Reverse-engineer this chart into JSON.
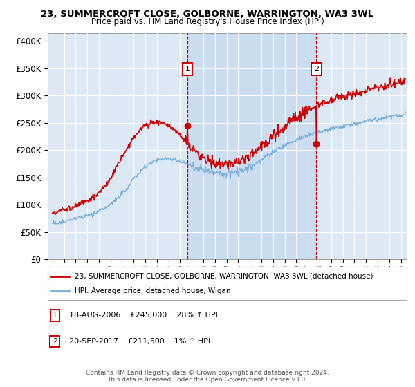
{
  "title1": "23, SUMMERCROFT CLOSE, GOLBORNE, WARRINGTON, WA3 3WL",
  "title2": "Price paid vs. HM Land Registry's House Price Index (HPI)",
  "bg_color": "#dce9f5",
  "ylabel_ticks": [
    "£0",
    "£50K",
    "£100K",
    "£150K",
    "£200K",
    "£250K",
    "£300K",
    "£350K",
    "£400K"
  ],
  "ytick_values": [
    0,
    50000,
    100000,
    150000,
    200000,
    250000,
    300000,
    350000,
    400000
  ],
  "ylim": [
    0,
    415000
  ],
  "xlim_start": 1994.6,
  "xlim_end": 2025.5,
  "legend_line1": "23, SUMMERCROFT CLOSE, GOLBORNE, WARRINGTON, WA3 3WL (detached house)",
  "legend_line2": "HPI: Average price, detached house, Wigan",
  "sale1_date": 2006.625,
  "sale1_price": 245000,
  "sale1_label": "1",
  "sale1_note": "18-AUG-2006    £245,000    28% ↑ HPI",
  "sale2_date": 2017.72,
  "sale2_price": 211500,
  "sale2_label": "2",
  "sale2_note": "20-SEP-2017    £211,500    1% ↑ HPI",
  "footer": "Contains HM Land Registry data © Crown copyright and database right 2024.\nThis data is licensed under the Open Government Licence v3.0.",
  "hpi_color": "#7aaedc",
  "sale_color": "#cc0000",
  "marker_box_color": "#cc0000",
  "shade_color": "#c5d9ee"
}
